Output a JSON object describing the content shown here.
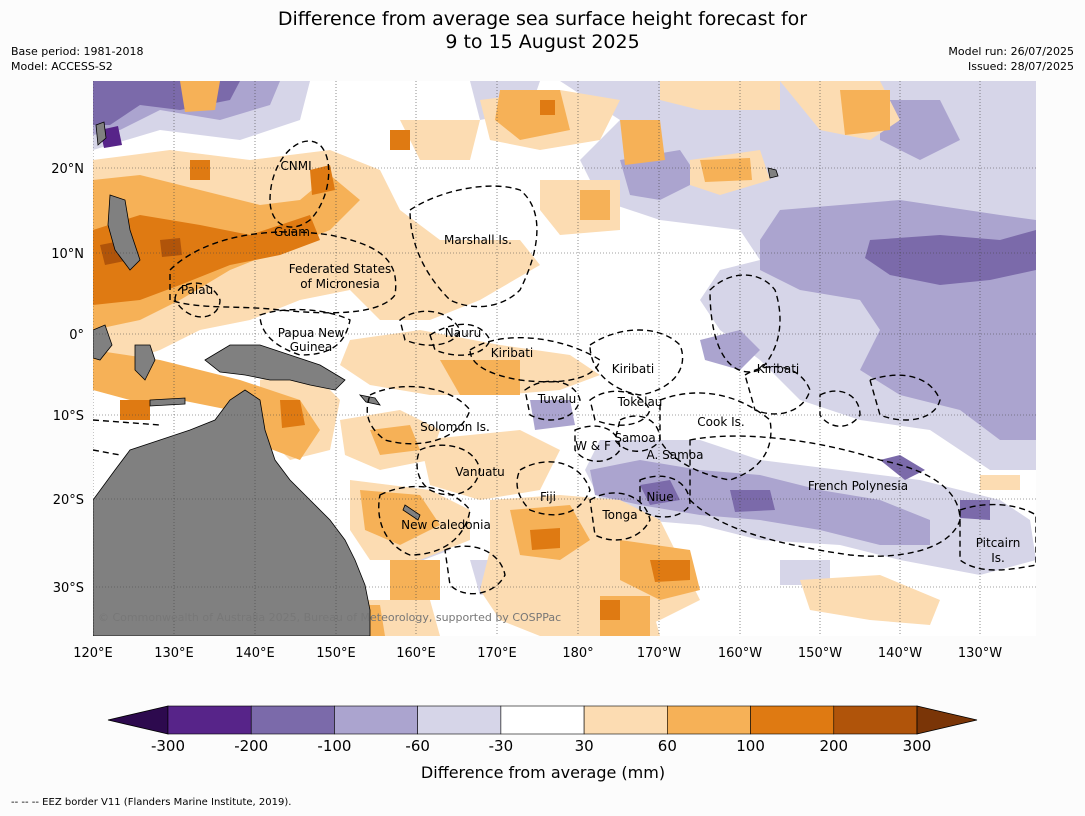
{
  "title_line1": "Difference from average sea surface height forecast for",
  "title_line2": "9 to 15 August 2025",
  "base_period": "Base period: 1981-2018",
  "model": "Model: ACCESS-S2",
  "model_run": "Model run: 26/07/2025",
  "issued": "Issued: 28/07/2025",
  "copyright": "© Commonwealth of Australia 2025, Bureau of Meteorology, supported by COSPPac",
  "eez_note": "--  --  -- EEZ border V11 (Flanders Marine Institute, 2019).",
  "axes": {
    "lon_labels": [
      "120°E",
      "130°E",
      "140°E",
      "150°E",
      "160°E",
      "170°E",
      "180°",
      "170°W",
      "160°W",
      "150°W",
      "140°W",
      "130°W"
    ],
    "lat_labels": [
      "20°N",
      "10°N",
      "0°",
      "10°S",
      "20°S",
      "30°S"
    ]
  },
  "region_labels": [
    {
      "id": "cnmi",
      "text": "CNMI"
    },
    {
      "id": "guam",
      "text": "Guam"
    },
    {
      "id": "marshall",
      "text": "Marshall Is."
    },
    {
      "id": "fsm1",
      "text": "Federated States"
    },
    {
      "id": "fsm2",
      "text": "of Micronesia"
    },
    {
      "id": "palau",
      "text": "Palau"
    },
    {
      "id": "png1",
      "text": "Papua New"
    },
    {
      "id": "png2",
      "text": "Guinea"
    },
    {
      "id": "nauru",
      "text": "Nauru"
    },
    {
      "id": "kiribati1",
      "text": "Kiribati"
    },
    {
      "id": "kiribati2",
      "text": "Kiribati"
    },
    {
      "id": "kiribati3",
      "text": "Kiribati"
    },
    {
      "id": "tuvalu",
      "text": "Tuvalu"
    },
    {
      "id": "tokelau",
      "text": "Tokelau"
    },
    {
      "id": "solomon",
      "text": "Solomon Is."
    },
    {
      "id": "cook",
      "text": "Cook Is."
    },
    {
      "id": "samoa",
      "text": "Samoa"
    },
    {
      "id": "wf",
      "text": "W & F"
    },
    {
      "id": "asamoa",
      "text": "A. Samoa"
    },
    {
      "id": "vanuatu",
      "text": "Vanuatu"
    },
    {
      "id": "fiji",
      "text": "Fiji"
    },
    {
      "id": "niue",
      "text": "Niue"
    },
    {
      "id": "frenchpoly",
      "text": "French Polynesia"
    },
    {
      "id": "tonga",
      "text": "Tonga"
    },
    {
      "id": "newcal",
      "text": "New Caledonia"
    },
    {
      "id": "pitcairn1",
      "text": "Pitcairn"
    },
    {
      "id": "pitcairn2",
      "text": "Is."
    }
  ],
  "colorbar": {
    "title": "Difference from average (mm)",
    "ticks": [
      "-300",
      "-200",
      "-100",
      "-60",
      "-30",
      "30",
      "60",
      "100",
      "200",
      "300"
    ],
    "colors": {
      "below": "#2d0a4e",
      "b1": "#572489",
      "b2": "#7b6aaa",
      "b3": "#aba4cf",
      "b4": "#d6d5e8",
      "b5": "#ffffff",
      "b6": "#fcdcb2",
      "b7": "#f6b157",
      "b8": "#df7a12",
      "b9": "#b0540a",
      "above": "#7a3507"
    }
  },
  "land_color": "#808080"
}
